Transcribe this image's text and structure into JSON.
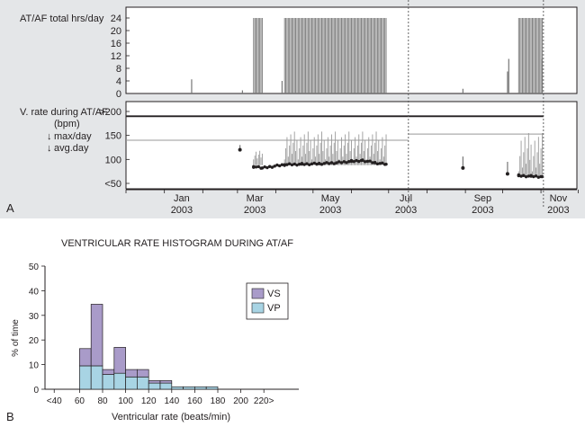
{
  "chart_data": [
    {
      "panel": "A",
      "type": "bar",
      "title": "AT/AF total hrs/day",
      "ylabel": "AT/AF total hrs/day",
      "ylim": [
        0,
        24
      ],
      "yticks": [
        "24",
        "20",
        "16",
        "12",
        "8",
        "4",
        "0"
      ],
      "x_range": [
        "2002-12-01",
        "2003-11-30"
      ],
      "x_ticks": [
        {
          "month": "Jan",
          "year": "2003",
          "date": "2003-01-15"
        },
        {
          "month": "Mar",
          "year": "2003",
          "date": "2003-03-15"
        },
        {
          "month": "May",
          "year": "2003",
          "date": "2003-05-15"
        },
        {
          "month": "Jul",
          "year": "2003",
          "date": "2003-07-15"
        },
        {
          "month": "Sep",
          "year": "2003",
          "date": "2003-09-15"
        },
        {
          "month": "Nov",
          "year": "2003",
          "date": "2003-11-15"
        }
      ],
      "event_lines": [
        "2003-07-17",
        "2003-11-03"
      ],
      "isolated_bars": [
        {
          "date": "2003-01-23",
          "value": 4.5
        },
        {
          "date": "2003-03-05",
          "value": 1
        },
        {
          "date": "2003-04-06",
          "value": 4
        },
        {
          "date": "2003-08-30",
          "value": 1.5
        },
        {
          "date": "2003-10-05",
          "value": 7
        },
        {
          "date": "2003-10-06",
          "value": 11
        },
        {
          "date": "2003-11-02",
          "value": 11
        }
      ],
      "continuous_blocks": [
        {
          "start": "2003-03-14",
          "end": "2003-03-21",
          "value": 24
        },
        {
          "start": "2003-04-08",
          "end": "2003-06-29",
          "value": 24
        },
        {
          "start": "2003-10-14",
          "end": "2003-11-02",
          "value": 24
        }
      ],
      "annotation": "A"
    },
    {
      "panel": "A-lower",
      "type": "scatter",
      "title": "V. rate during AT/AF (bpm)",
      "ylabel": "V. rate during AT/AF\n(bpm)",
      "legend": [
        "max/day",
        "avg.day"
      ],
      "yticks": [
        ">200",
        "150",
        "100",
        "<50"
      ],
      "ylim": [
        50,
        200
      ],
      "reference_lines": [
        {
          "y": 190,
          "style": "thick",
          "from": "2002-12-01",
          "to": "2003-11-03"
        },
        {
          "y": 140,
          "style": "thin",
          "from": "2002-12-01",
          "to": "2003-07-17"
        },
        {
          "y": 153,
          "style": "thin",
          "from": "2003-07-17",
          "to": "2003-11-03"
        }
      ],
      "max_per_day_segments": [
        {
          "start": "2003-03-14",
          "end": "2003-03-21",
          "low": 100,
          "high": 120
        },
        {
          "start": "2003-04-08",
          "end": "2003-06-29",
          "low": 100,
          "high": 158
        },
        {
          "start": "2003-10-14",
          "end": "2003-11-02",
          "low": 75,
          "high": 155
        }
      ],
      "isolated_points": [
        {
          "date": "2003-03-03",
          "max": 130,
          "avg": 120
        },
        {
          "date": "2003-08-30",
          "max": 106,
          "avg": 82
        },
        {
          "date": "2003-10-05",
          "max": 95,
          "avg": 70
        }
      ],
      "avg_per_day": [
        {
          "date": "2003-03-14",
          "value": 85
        },
        {
          "date": "2003-03-21",
          "value": 82
        },
        {
          "date": "2003-04-08",
          "value": 89
        },
        {
          "date": "2003-04-22",
          "value": 90
        },
        {
          "date": "2003-05-06",
          "value": 91
        },
        {
          "date": "2003-05-20",
          "value": 93
        },
        {
          "date": "2003-06-01",
          "value": 96
        },
        {
          "date": "2003-06-10",
          "value": 98
        },
        {
          "date": "2003-06-20",
          "value": 93
        },
        {
          "date": "2003-06-29",
          "value": 90
        },
        {
          "date": "2003-10-14",
          "value": 66
        },
        {
          "date": "2003-10-24",
          "value": 65
        },
        {
          "date": "2003-11-02",
          "value": 64
        }
      ]
    },
    {
      "panel": "B",
      "type": "bar",
      "title": "VENTRICULAR RATE HISTOGRAM DURING AT/AF",
      "xlabel": "Ventricular rate (beats/min)",
      "ylabel": "% of time",
      "ylim": [
        0,
        50
      ],
      "yticks": [
        "0",
        "10",
        "20",
        "30",
        "40",
        "50"
      ],
      "x_tick_labels": [
        "<40",
        "60",
        "80",
        "100",
        "120",
        "140",
        "160",
        "180",
        "200",
        "220>"
      ],
      "bins": [
        {
          "from": 60,
          "to": 70
        },
        {
          "from": 70,
          "to": 80
        },
        {
          "from": 80,
          "to": 90
        },
        {
          "from": 90,
          "to": 100
        },
        {
          "from": 100,
          "to": 110
        },
        {
          "from": 110,
          "to": 120
        },
        {
          "from": 120,
          "to": 130
        },
        {
          "from": 130,
          "to": 140
        },
        {
          "from": 140,
          "to": 150
        },
        {
          "from": 150,
          "to": 160
        },
        {
          "from": 160,
          "to": 170
        },
        {
          "from": 170,
          "to": 180
        }
      ],
      "series": [
        {
          "name": "VP",
          "color": "#a8d4e4",
          "values": [
            9.5,
            9.5,
            6,
            6.5,
            5,
            5,
            2.5,
            2.5,
            1,
            1,
            1,
            1
          ]
        },
        {
          "name": "VS",
          "color": "#a99bc9",
          "values": [
            7,
            25,
            2,
            10.5,
            3,
            3,
            1,
            1,
            0,
            0,
            0,
            0
          ]
        }
      ],
      "legend_position": "right",
      "annotation": "B"
    }
  ]
}
